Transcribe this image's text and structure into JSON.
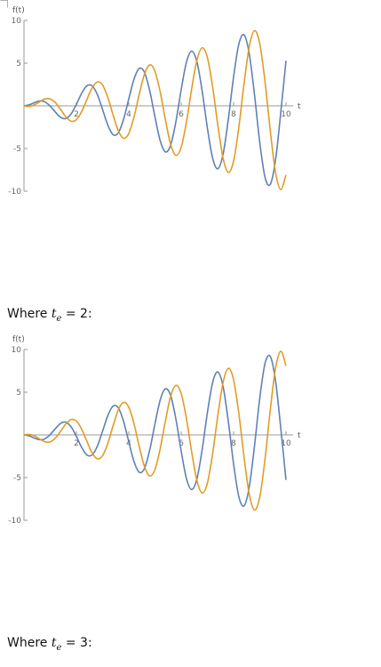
{
  "chart_data": [
    {
      "type": "line",
      "xlabel": "t",
      "ylabel": "f(t)",
      "xlim": [
        0,
        10
      ],
      "ylim": [
        -10,
        10
      ],
      "xticks": [
        2,
        4,
        6,
        8,
        10
      ],
      "yticks": [
        -10,
        -5,
        5,
        10
      ],
      "grid": false,
      "x": [
        0,
        0.2,
        0.4,
        0.6,
        0.8,
        1,
        1.2,
        1.4,
        1.6,
        1.8,
        2,
        2.2,
        2.4,
        2.6,
        2.8,
        3,
        3.2,
        3.4,
        3.6,
        3.8,
        4,
        4.2,
        4.4,
        4.6,
        4.8,
        5,
        5.2,
        5.4,
        5.6,
        5.8,
        6,
        6.2,
        6.4,
        6.6,
        6.8,
        7,
        7.2,
        7.4,
        7.6,
        7.8,
        8,
        8.2,
        8.4,
        8.6,
        8.8,
        9,
        9.2,
        9.4,
        9.6,
        9.8,
        10
      ],
      "series": [
        {
          "color": "#5e81b5",
          "values": [
            0,
            0.11,
            0.38,
            0.57,
            0.46,
            -0.03,
            -0.74,
            -1.35,
            -1.49,
            -0.94,
            0.17,
            1.46,
            2.35,
            2.35,
            1.32,
            -0.44,
            -2.26,
            -3.37,
            -3.17,
            -1.59,
            0.81,
            3.13,
            4.38,
            3.91,
            1.76,
            -1.3,
            -4.09,
            -5.4,
            -4.59,
            -1.82,
            1.89,
            5.1,
            6.4,
            5.17,
            1.75,
            -2.59,
            -6.13,
            -7.37,
            -5.66,
            -1.56,
            3.39,
            7.22,
            8.31,
            6.07,
            1.26,
            -4.29,
            -8.36,
            -9.2,
            -6.38,
            -0.83,
            5.28
          ]
        },
        {
          "color": "#e19c24",
          "values": [
            0,
            -0.06,
            0.12,
            0.49,
            0.8,
            0.81,
            0.37,
            -0.43,
            -1.29,
            -1.8,
            -1.62,
            -0.68,
            0.74,
            2.1,
            2.8,
            2.43,
            0.99,
            -1.05,
            -2.91,
            -3.8,
            -3.24,
            -1.3,
            1.36,
            3.72,
            4.8,
            4.05,
            1.61,
            -1.67,
            -4.53,
            -5.8,
            -4.85,
            -1.92,
            1.98,
            5.34,
            6.8,
            5.66,
            2.22,
            -2.29,
            -6.15,
            -7.8,
            -6.47,
            -2.53,
            2.6,
            6.96,
            8.8,
            7.28,
            2.84,
            -2.9,
            -7.77,
            -9.8,
            -8.09
          ]
        }
      ]
    },
    {
      "type": "line",
      "xlabel": "t",
      "ylabel": "f(t)",
      "xlim": [
        0,
        10
      ],
      "ylim": [
        -10,
        10
      ],
      "xticks": [
        2,
        4,
        6,
        8,
        10
      ],
      "yticks": [
        -10,
        -5,
        5,
        10
      ],
      "grid": false,
      "x": [
        0,
        0.2,
        0.4,
        0.6,
        0.8,
        1,
        1.2,
        1.4,
        1.6,
        1.8,
        2,
        2.2,
        2.4,
        2.6,
        2.8,
        3,
        3.2,
        3.4,
        3.6,
        3.8,
        4,
        4.2,
        4.4,
        4.6,
        4.8,
        5,
        5.2,
        5.4,
        5.6,
        5.8,
        6,
        6.2,
        6.4,
        6.6,
        6.8,
        7,
        7.2,
        7.4,
        7.6,
        7.8,
        8,
        8.2,
        8.4,
        8.6,
        8.8,
        9,
        9.2,
        9.4,
        9.6,
        9.8,
        10
      ],
      "series": [
        {
          "color": "#5e81b5",
          "values": [
            0,
            -0.11,
            -0.38,
            -0.57,
            -0.46,
            0.03,
            0.74,
            1.35,
            1.49,
            0.94,
            -0.17,
            -1.46,
            -2.35,
            -2.35,
            -1.32,
            0.44,
            2.26,
            3.37,
            3.17,
            1.59,
            -0.81,
            -3.13,
            -4.38,
            -3.91,
            -1.76,
            1.3,
            4.09,
            5.4,
            4.59,
            1.82,
            -1.89,
            -5.1,
            -6.4,
            -5.17,
            -1.75,
            2.59,
            6.13,
            7.37,
            5.66,
            1.56,
            -3.39,
            -7.22,
            -8.31,
            -6.07,
            -1.26,
            4.29,
            8.36,
            9.2,
            6.38,
            0.83,
            -5.28
          ]
        },
        {
          "color": "#e19c24",
          "values": [
            0,
            0.06,
            -0.12,
            -0.49,
            -0.8,
            -0.81,
            -0.37,
            0.43,
            1.29,
            1.8,
            1.62,
            0.68,
            -0.74,
            -2.1,
            -2.8,
            -2.43,
            -0.99,
            1.05,
            2.91,
            3.8,
            3.24,
            1.3,
            -1.36,
            -3.72,
            -4.8,
            -4.05,
            -1.61,
            1.67,
            4.53,
            5.8,
            4.85,
            1.92,
            -1.98,
            -5.34,
            -6.8,
            -5.66,
            -2.22,
            2.29,
            6.15,
            7.8,
            6.47,
            2.53,
            -2.6,
            -6.96,
            -8.8,
            -7.28,
            -2.84,
            2.9,
            7.77,
            9.8,
            8.09
          ]
        }
      ]
    }
  ],
  "captions": [
    {
      "lead": "Where ",
      "var": "t",
      "sub": "e",
      "rest": " = 2:"
    },
    {
      "lead": "Where ",
      "var": "t",
      "sub": "e",
      "rest": " = 3:"
    }
  ]
}
